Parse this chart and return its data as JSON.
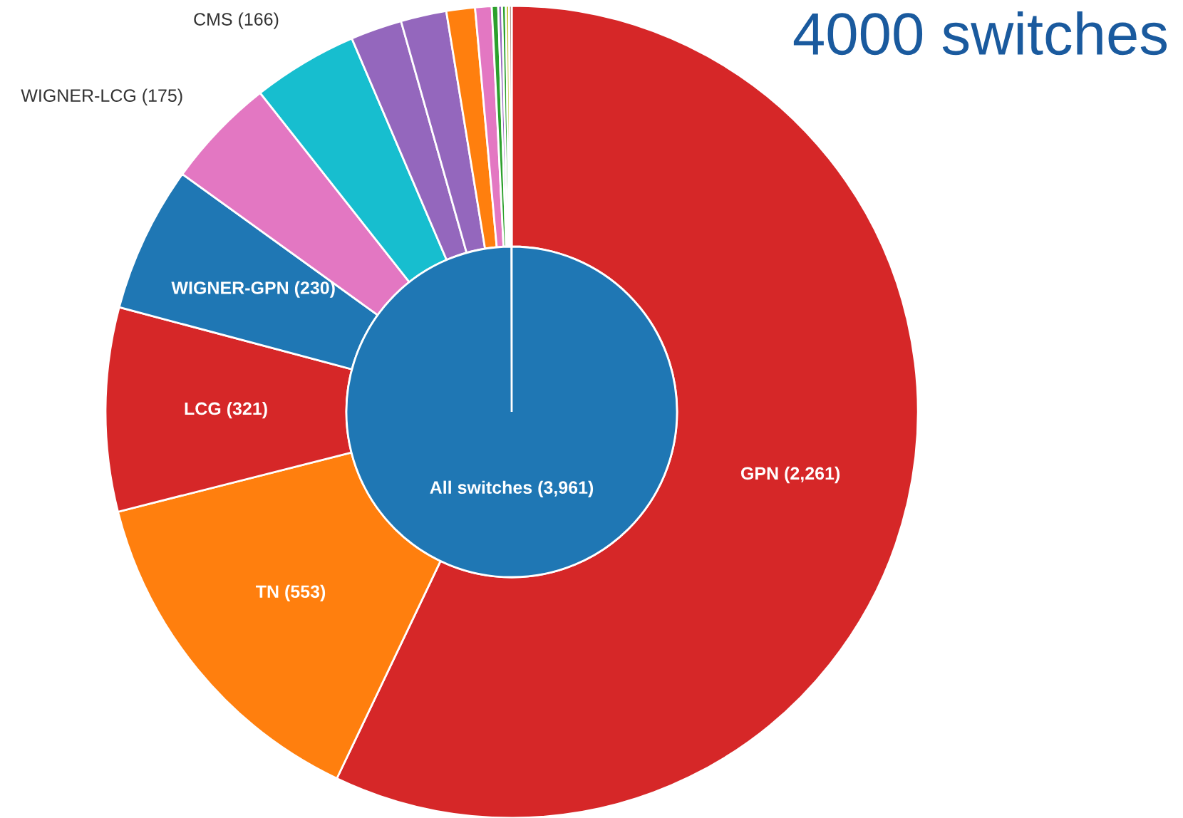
{
  "chart_data": {
    "type": "donut",
    "title": "4000 switches",
    "categories": [
      "GPN (2,261)",
      "TN (553)",
      "LCG (321)",
      "WIGNER-GPN (230)",
      "WIGNER-LCG (175)",
      "CMS (166)",
      null,
      null,
      null,
      null,
      null,
      null,
      null,
      null,
      null
    ],
    "values": [
      2261,
      553,
      321,
      230,
      175,
      166,
      81,
      72,
      45,
      26,
      10,
      6,
      6,
      5,
      4
    ],
    "colors": [
      "#d62728",
      "#ff7f0e",
      "#d62728",
      "#1f77b4",
      "#e377c2",
      "#17becf",
      "#9467bd",
      "#9467bd",
      "#ff7f0e",
      "#e377c2",
      "#2ca02c",
      "#9467bd",
      "#2ca02c",
      "#bcbd22",
      "#8c564b"
    ],
    "annotations": [
      "All switches (3,961)"
    ]
  }
}
